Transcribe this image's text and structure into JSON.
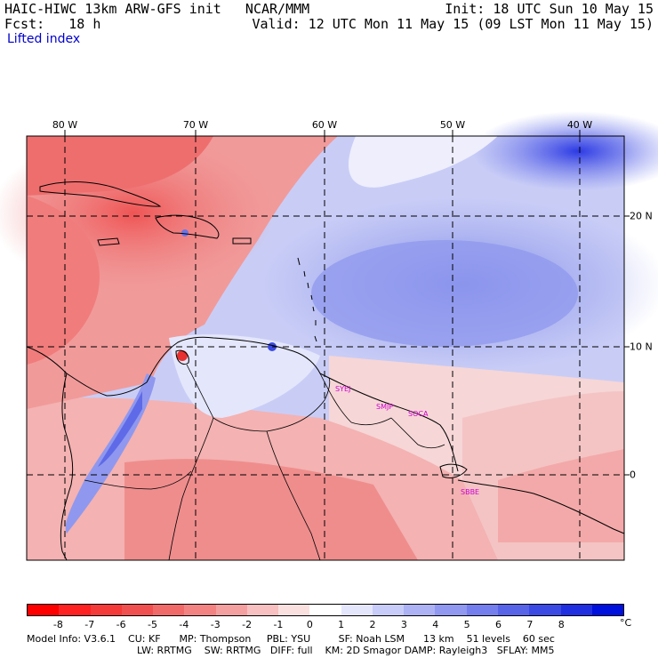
{
  "header": {
    "model_title": "HAIC-HIWC 13km ARW-GFS init   NCAR/MMM",
    "forecast": "Fcst:   18 h",
    "init": "Init: 18 UTC Sun 10 May 15",
    "valid": "Valid: 12 UTC Mon 11 May 15 (09 LST Mon 11 May 15)",
    "field": "Lifted index"
  },
  "map": {
    "longitude_labels": [
      "80 W",
      "70 W",
      "60 W",
      "50 W",
      "40 W"
    ],
    "latitude_labels": [
      "20 N",
      "10 N",
      "0"
    ],
    "stations": [
      "SYEJ",
      "SMJP",
      "SOCA",
      "SBBE"
    ]
  },
  "colorbar": {
    "ticks": [
      "-8",
      "-7",
      "-6",
      "-5",
      "-4",
      "-3",
      "-2",
      "-1",
      "0",
      "1",
      "2",
      "3",
      "4",
      "5",
      "6",
      "7",
      "8"
    ],
    "unit": "°C",
    "colors": [
      "#ff0000",
      "#ff2222",
      "#f53a3a",
      "#f05050",
      "#f06a6a",
      "#f38383",
      "#f5a0a0",
      "#f8c0c0",
      "#fbe0e0",
      "#ffffff",
      "#e4e6fc",
      "#c8ccf8",
      "#acb2f4",
      "#9098f0",
      "#747eec",
      "#5864e8",
      "#3c4ae4",
      "#2030e0",
      "#0010dd"
    ]
  },
  "footer": {
    "line1": "Model Info: V3.6.1    CU: KF      MP: Thompson     PBL: YSU         SF: Noah LSM      13 km    51 levels    60 sec",
    "line2": "LW: RRTMG    SW: RRTMG   DIFF: full    KM: 2D Smagor DAMP: Rayleigh3   SFLAY: MM5"
  }
}
